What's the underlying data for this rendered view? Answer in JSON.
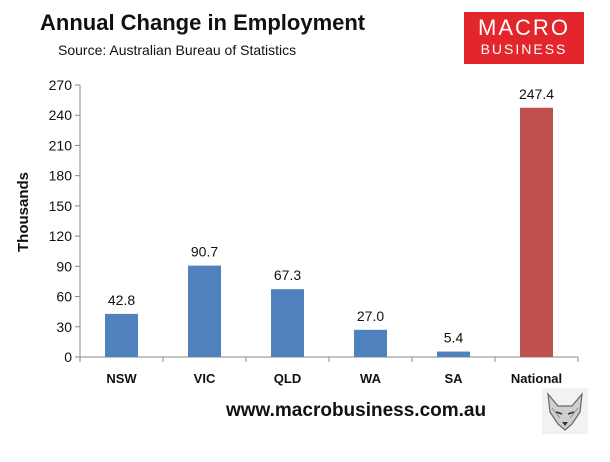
{
  "header": {
    "title": "Annual Change in Employment",
    "subtitle": "Source: Australian Bureau of Statistics"
  },
  "logo": {
    "line1": "MACRO",
    "line2": "BUSINESS"
  },
  "footer": {
    "url": "www.macrobusiness.com.au"
  },
  "colors": {
    "bar": "#4f81bd",
    "highlight": "#c0504d",
    "logo": "#e3262b"
  },
  "icons": {
    "watermark": "fox-icon"
  },
  "chart_data": {
    "type": "bar",
    "title": "Annual Change in Employment",
    "subtitle": "Source: Australian Bureau of Statistics",
    "xlabel": "",
    "ylabel": "Thousands",
    "categories": [
      "NSW",
      "VIC",
      "QLD",
      "WA",
      "SA",
      "National"
    ],
    "values": [
      42.8,
      90.7,
      67.3,
      27.0,
      5.4,
      247.4
    ],
    "value_labels": [
      "42.8",
      "90.7",
      "67.3",
      "27.0",
      "5.4",
      "247.4"
    ],
    "highlight_category": "National",
    "ylim": [
      0,
      270
    ],
    "yticks": [
      0,
      30,
      60,
      90,
      120,
      150,
      180,
      210,
      240,
      270
    ],
    "grid": false,
    "legend": "none"
  }
}
